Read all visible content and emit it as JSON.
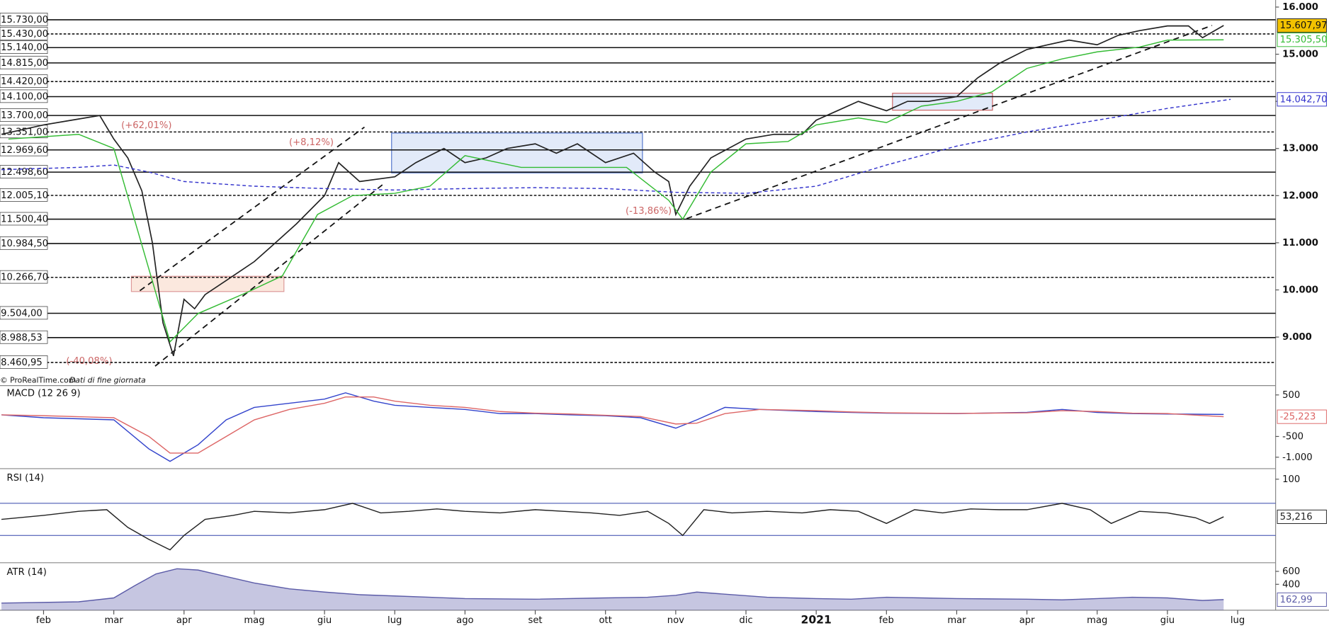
{
  "chart_data": [
    {
      "type": "line",
      "name": "price",
      "annotations": [
        "(+62,01%)",
        "(+8,12%)",
        "(-13,86%)",
        "(-40,08%)"
      ],
      "source": "© ProRealTime.com",
      "source_note": "Dati di fine giornata",
      "xlim": [
        -0.62,
        17.54
      ],
      "xticks": [
        {
          "value": 0,
          "label": "feb"
        },
        {
          "value": 1,
          "label": "mar"
        },
        {
          "value": 2,
          "label": "apr"
        },
        {
          "value": 3,
          "label": "mag"
        },
        {
          "value": 4,
          "label": "giu"
        },
        {
          "value": 5,
          "label": "lug"
        },
        {
          "value": 6,
          "label": "ago"
        },
        {
          "value": 7,
          "label": "set"
        },
        {
          "value": 8,
          "label": "ott"
        },
        {
          "value": 9,
          "label": "nov"
        },
        {
          "value": 10,
          "label": "dic"
        },
        {
          "value": 11,
          "label": "2021"
        },
        {
          "value": 12,
          "label": "feb"
        },
        {
          "value": 13,
          "label": "mar"
        },
        {
          "value": 14,
          "label": "apr"
        },
        {
          "value": 15,
          "label": "mag"
        },
        {
          "value": 16,
          "label": "giu"
        },
        {
          "value": 17,
          "label": "lug"
        }
      ],
      "ylim": [
        7970,
        16150
      ],
      "yticks": [
        {
          "value": 16000,
          "label": "16.000"
        },
        {
          "value": 15000,
          "label": "15.000"
        },
        {
          "value": 14000,
          "label": "14.000"
        },
        {
          "value": 13000,
          "label": "13.000"
        },
        {
          "value": 12000,
          "label": "12.000"
        },
        {
          "value": 11000,
          "label": "11.000"
        },
        {
          "value": 10000,
          "label": "10.000"
        },
        {
          "value": 9000,
          "label": "9.000"
        }
      ],
      "levels": [
        {
          "value": 15730,
          "label": "15.730,00"
        },
        {
          "value": 15430,
          "label": "15.430,00"
        },
        {
          "value": 15140,
          "label": "15.140,00"
        },
        {
          "value": 14815,
          "label": "14.815,00"
        },
        {
          "value": 14420,
          "label": "14.420,00"
        },
        {
          "value": 14100,
          "label": "14.100,00"
        },
        {
          "value": 13700,
          "label": "13.700,00"
        },
        {
          "value": 13351,
          "label": "13.351,00"
        },
        {
          "value": 12969.6,
          "label": "12.969,60"
        },
        {
          "value": 12498.6,
          "label": "12.498,60"
        },
        {
          "value": 12005.1,
          "label": "12.005,10"
        },
        {
          "value": 11500.4,
          "label": "11.500,40"
        },
        {
          "value": 10984.5,
          "label": "10.984,50"
        },
        {
          "value": 10266.7,
          "label": "10.266,70"
        },
        {
          "value": 9504,
          "label": "9.504,00"
        },
        {
          "value": 8988.53,
          "label": "8.988,53"
        },
        {
          "value": 8460.95,
          "label": "8.460,95"
        }
      ],
      "series": [
        {
          "color": "#222222",
          "last_value_label": "15.607,97",
          "x": [
            -0.6,
            0,
            0.4,
            0.8,
            1.0,
            1.2,
            1.4,
            1.55,
            1.7,
            1.85,
            2.0,
            2.15,
            2.3,
            2.6,
            3.0,
            3.3,
            3.6,
            4.0,
            4.2,
            4.5,
            5.0,
            5.3,
            5.7,
            6.0,
            6.3,
            6.6,
            7.0,
            7.3,
            7.6,
            8.0,
            8.4,
            8.7,
            8.9,
            9.0,
            9.2,
            9.5,
            10.0,
            10.4,
            10.8,
            11.0,
            11.3,
            11.6,
            12.0,
            12.3,
            12.6,
            13.0,
            13.3,
            13.6,
            14.0,
            14.3,
            14.6,
            15.0,
            15.3,
            15.6,
            16.0,
            16.3,
            16.5,
            16.8
          ],
          "values": [
            13300,
            13500,
            13600,
            13700,
            13200,
            12800,
            12100,
            11000,
            9300,
            8600,
            9800,
            9600,
            9900,
            10200,
            10600,
            11000,
            11400,
            12000,
            12700,
            12300,
            12400,
            12700,
            13000,
            12700,
            12800,
            13000,
            13100,
            12900,
            13100,
            12700,
            12900,
            12500,
            12300,
            11600,
            12200,
            12800,
            13200,
            13300,
            13300,
            13600,
            13800,
            14000,
            13800,
            14000,
            14000,
            14100,
            14500,
            14800,
            15100,
            15200,
            15300,
            15200,
            15400,
            15500,
            15600,
            15600,
            15350,
            15607.97
          ]
        },
        {
          "color": "#3333cc",
          "dashed": true,
          "last_value_label": "14.042,70",
          "x": [
            -0.6,
            0.5,
            1.0,
            1.5,
            2.0,
            3.0,
            4.0,
            5.0,
            6.0,
            7.0,
            8.0,
            9.0,
            10.0,
            11.0,
            12.0,
            13.0,
            14.0,
            15.0,
            16.0,
            16.9
          ],
          "values": [
            12550,
            12600,
            12650,
            12500,
            12300,
            12200,
            12150,
            12120,
            12150,
            12170,
            12150,
            12070,
            12050,
            12200,
            12650,
            13050,
            13350,
            13600,
            13850,
            14042.7
          ]
        },
        {
          "color": "#33bb33",
          "last_value_label": "15.305,50",
          "x": [
            -0.5,
            0.5,
            1.0,
            1.8,
            2.2,
            2.9,
            3.4,
            3.9,
            4.4,
            5.0,
            5.5,
            6.0,
            6.8,
            7.5,
            8.3,
            8.9,
            9.1,
            9.5,
            10.0,
            10.6,
            11.0,
            11.6,
            12.0,
            12.5,
            13.0,
            13.5,
            14.0,
            14.5,
            15.0,
            15.6,
            16.0,
            16.8
          ],
          "values": [
            13200,
            13300,
            13000,
            8900,
            9500,
            9950,
            10300,
            11600,
            12000,
            12050,
            12200,
            12850,
            12600,
            12600,
            12600,
            11900,
            11500,
            12500,
            13100,
            13150,
            13500,
            13650,
            13550,
            13900,
            14000,
            14200,
            14700,
            14900,
            15050,
            15150,
            15300,
            15305.5
          ]
        }
      ]
    },
    {
      "type": "line",
      "name": "macd",
      "title": "MACD (12 26 9)",
      "xlim": [
        -0.62,
        17.54
      ],
      "ylim": [
        -1276,
        704
      ],
      "yticks": [
        500,
        -500,
        {
          "value": -1000,
          "label": "-1.000"
        }
      ],
      "series": [
        {
          "color": "#3344cc",
          "x": [
            -0.6,
            0,
            1.0,
            1.5,
            1.8,
            2.2,
            2.6,
            3.0,
            3.5,
            4.0,
            4.3,
            4.7,
            5.0,
            5.5,
            6.0,
            6.5,
            7.0,
            7.5,
            8.0,
            8.5,
            9.0,
            9.3,
            9.7,
            10.2,
            11.0,
            11.5,
            12.0,
            13.0,
            14.0,
            14.5,
            15.0,
            15.5,
            16.0,
            16.8
          ],
          "values": [
            20,
            -50,
            -100,
            -800,
            -1100,
            -700,
            -100,
            200,
            300,
            400,
            550,
            350,
            250,
            200,
            150,
            50,
            50,
            20,
            0,
            -50,
            -300,
            -100,
            200,
            150,
            100,
            80,
            60,
            50,
            80,
            150,
            80,
            50,
            40,
            30
          ]
        },
        {
          "color": "#dd6666",
          "last_value_label": "-25,223",
          "x": [
            -0.6,
            0,
            1.0,
            1.5,
            1.8,
            2.2,
            2.6,
            3.0,
            3.5,
            4.0,
            4.3,
            4.7,
            5.0,
            5.5,
            6.0,
            6.5,
            7.0,
            7.5,
            8.0,
            8.5,
            9.0,
            9.3,
            9.7,
            10.2,
            11.0,
            11.5,
            12.0,
            13.0,
            14.0,
            14.5,
            15.0,
            15.5,
            16.0,
            16.8
          ],
          "values": [
            20,
            0,
            -50,
            -500,
            -900,
            -900,
            -500,
            -100,
            150,
            300,
            450,
            450,
            350,
            250,
            200,
            100,
            60,
            40,
            10,
            -20,
            -200,
            -180,
            50,
            150,
            120,
            90,
            70,
            55,
            70,
            120,
            100,
            60,
            50,
            -25.223
          ]
        }
      ]
    },
    {
      "type": "line",
      "name": "rsi",
      "title": "RSI (14)",
      "xlim": [
        -0.62,
        17.54
      ],
      "ylim": [
        -4,
        111
      ],
      "yticks": [
        100
      ],
      "levels": [
        70,
        30
      ],
      "series": [
        {
          "color": "#222222",
          "last_value_label": "53,216",
          "x": [
            -0.6,
            0,
            0.5,
            0.9,
            1.2,
            1.5,
            1.8,
            2.0,
            2.3,
            2.7,
            3.0,
            3.5,
            4.0,
            4.4,
            4.8,
            5.2,
            5.6,
            6.0,
            6.5,
            7.0,
            7.4,
            7.8,
            8.2,
            8.6,
            8.9,
            9.1,
            9.4,
            9.8,
            10.3,
            10.8,
            11.2,
            11.6,
            12.0,
            12.4,
            12.8,
            13.2,
            13.6,
            14.0,
            14.5,
            14.9,
            15.2,
            15.6,
            16.0,
            16.4,
            16.6,
            16.8
          ],
          "values": [
            50,
            55,
            60,
            62,
            40,
            25,
            12,
            30,
            50,
            55,
            60,
            58,
            62,
            70,
            58,
            60,
            63,
            60,
            58,
            62,
            60,
            58,
            55,
            60,
            45,
            30,
            62,
            58,
            60,
            58,
            62,
            60,
            45,
            62,
            58,
            63,
            62,
            62,
            70,
            62,
            45,
            60,
            58,
            52,
            45,
            53.216
          ]
        }
      ]
    },
    {
      "type": "area",
      "name": "atr",
      "title": "ATR (14)",
      "xlim": [
        -0.62,
        17.54
      ],
      "ylim": [
        0,
        720
      ],
      "yticks": [
        600,
        400
      ],
      "series": [
        {
          "color": "#5c5ca8",
          "last_value_label": "162,99",
          "x": [
            -0.6,
            0,
            0.5,
            1.0,
            1.3,
            1.6,
            1.9,
            2.2,
            2.6,
            3.0,
            3.5,
            4.0,
            4.5,
            5.0,
            5.5,
            6.0,
            7.0,
            8.0,
            8.6,
            9.0,
            9.3,
            9.8,
            10.3,
            11.0,
            11.5,
            12.0,
            12.5,
            13.0,
            14.0,
            14.5,
            15.0,
            15.5,
            16.0,
            16.5,
            16.8
          ],
          "values": [
            110,
            120,
            130,
            190,
            380,
            560,
            640,
            620,
            520,
            420,
            330,
            280,
            240,
            220,
            200,
            180,
            170,
            190,
            200,
            230,
            280,
            240,
            200,
            180,
            170,
            200,
            190,
            180,
            170,
            160,
            180,
            200,
            190,
            150,
            163
          ]
        }
      ]
    }
  ]
}
